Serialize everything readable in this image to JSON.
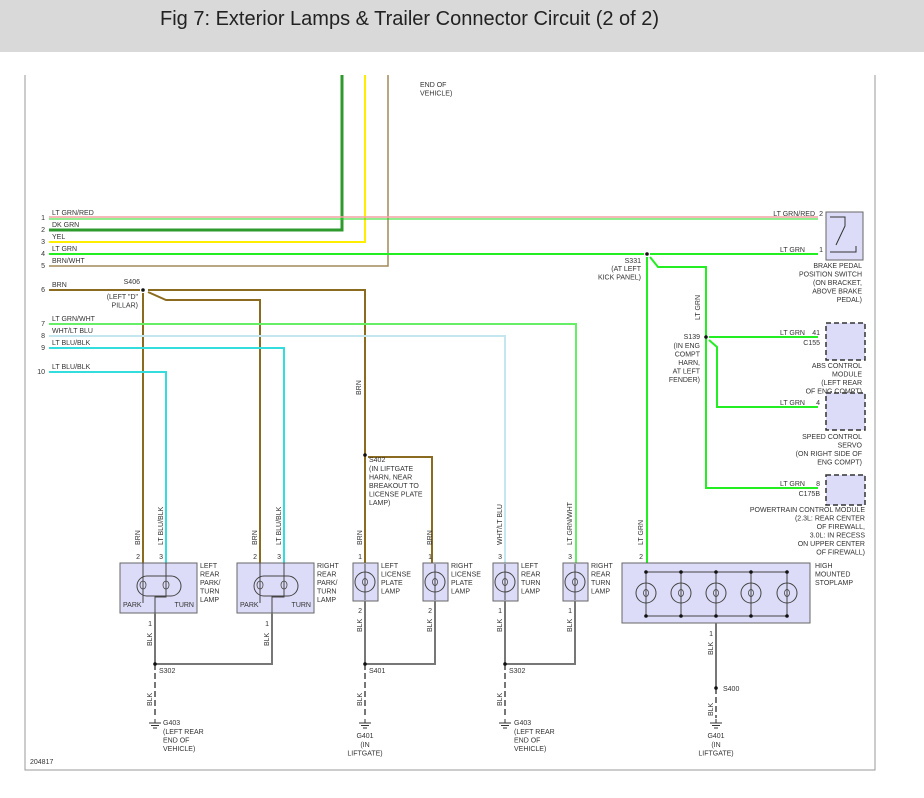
{
  "title": "Fig 7: Exterior Lamps & Trailer Connector Circuit (2 of 2)",
  "diagram_id": "204817",
  "top_note": [
    "END OF",
    "VEHICLE)"
  ],
  "harness": [
    {
      "pin": "1",
      "label": "LT GRN/RED",
      "color": "#f4a0a0",
      "stripe": "#22dd22"
    },
    {
      "pin": "2",
      "label": "DK GRN",
      "color": "#2e9a2e"
    },
    {
      "pin": "3",
      "label": "YEL",
      "color": "#ffee00"
    },
    {
      "pin": "4",
      "label": "LT GRN",
      "color": "#22ee22"
    },
    {
      "pin": "5",
      "label": "BRN/WHT",
      "color": "#a08a58"
    },
    {
      "pin": "6",
      "label": "BRN",
      "color": "#8b6b1f"
    },
    {
      "pin": "7",
      "label": "LT GRN/WHT",
      "color": "#66ee66"
    },
    {
      "pin": "8",
      "label": "WHT/LT BLU",
      "color": "#c4e6ee"
    },
    {
      "pin": "9",
      "label": "LT BLU/BLK",
      "color": "#33dddd"
    },
    {
      "pin": "10",
      "label": "LT BLU/BLK",
      "color": "#33dddd"
    }
  ],
  "colors": {
    "blk": "#777777",
    "lt_grn": "#22ee22",
    "brn": "#8b6b1f",
    "component_fill": "#dcdcf8"
  },
  "splices": {
    "s406": {
      "id": "S406",
      "location": [
        "(LEFT \"D\"",
        "PILLAR)"
      ]
    },
    "s331": {
      "id": "S331",
      "location": [
        "(AT LEFT",
        "KICK PANEL)"
      ]
    },
    "s139": {
      "id": "S139",
      "location": [
        "(IN ENG",
        "COMPT",
        "HARN,",
        "AT LEFT",
        "FENDER)"
      ]
    },
    "s402": {
      "id": "S402",
      "location": [
        "(IN LIFTGATE",
        "HARN, NEAR",
        "BREAKOUT TO",
        "LICENSE PLATE",
        "LAMP)"
      ]
    },
    "s302a": {
      "id": "S302"
    },
    "s401": {
      "id": "S401"
    },
    "s302b": {
      "id": "S302"
    },
    "s400": {
      "id": "S400"
    }
  },
  "grounds": {
    "g403a": {
      "id": "G403",
      "location": [
        "(LEFT REAR",
        "END OF",
        "VEHICLE)"
      ]
    },
    "g401a": {
      "id": "G401",
      "location": [
        "(IN",
        "LIFTGATE)"
      ]
    },
    "g403b": {
      "id": "G403",
      "location": [
        "(LEFT REAR",
        "END OF",
        "VEHICLE)"
      ]
    },
    "g401b": {
      "id": "G401",
      "location": [
        "(IN",
        "LIFTGATE)"
      ]
    }
  },
  "modules": {
    "brake_switch": {
      "name": [
        "BRAKE PEDAL",
        "POSITION SWITCH",
        "(ON BRACKET,",
        "ABOVE BRAKE",
        "PEDAL)"
      ],
      "pins": [
        "2",
        "1"
      ],
      "wires": [
        "LT GRN/RED",
        "LT GRN"
      ]
    },
    "abs": {
      "name": [
        "ABS CONTROL",
        "MODULE",
        "(LEFT REAR",
        "OF ENG COMPT)"
      ],
      "pin": "41",
      "connector": "C155",
      "wire": "LT GRN"
    },
    "speed_servo": {
      "name": [
        "SPEED CONTROL",
        "SERVO",
        "(ON RIGHT SIDE OF",
        "ENG COMPT)"
      ],
      "pin": "4",
      "wire": "LT GRN"
    },
    "pcm": {
      "name": [
        "POWERTRAIN CONTROL MODULE",
        "(2.3L: REAR CENTER",
        "OF FIREWALL,",
        "3.0L: IN RECESS",
        "ON UPPER CENTER",
        "OF FIREWALL)"
      ],
      "pin": "8",
      "connector": "C175B",
      "wire": "LT GRN"
    }
  },
  "vertical_labels": {
    "brn_s402": "BRN",
    "ltgrn_s139": "LT GRN",
    "ltgrn_hmsl": "LT GRN",
    "blk": "BLK"
  },
  "lamps": {
    "left_park": {
      "name": [
        "LEFT",
        "REAR",
        "PARK/",
        "TURN",
        "LAMP"
      ],
      "park": "PARK",
      "turn": "TURN",
      "pins": [
        "2",
        "3",
        "1"
      ],
      "wires": [
        "BRN",
        "LT BLU/BLK",
        "BLK"
      ]
    },
    "right_park": {
      "name": [
        "RIGHT",
        "REAR",
        "PARK/",
        "TURN",
        "LAMP"
      ],
      "park": "PARK",
      "turn": "TURN",
      "pins": [
        "2",
        "3",
        "1"
      ],
      "wires": [
        "BRN",
        "LT BLU/BLK",
        "BLK"
      ]
    },
    "left_license": {
      "name": [
        "LEFT",
        "LICENSE",
        "PLATE",
        "LAMP"
      ],
      "pins": [
        "1",
        "2"
      ],
      "wires": [
        "BRN",
        "BLK"
      ]
    },
    "right_license": {
      "name": [
        "RIGHT",
        "LICENSE",
        "PLATE",
        "LAMP"
      ],
      "pins": [
        "1",
        "2"
      ],
      "wires": [
        "BRN",
        "BLK"
      ]
    },
    "left_turn": {
      "name": [
        "LEFT",
        "REAR",
        "TURN",
        "LAMP"
      ],
      "pins": [
        "3",
        "1"
      ],
      "wires": [
        "WHT/LT BLU",
        "BLK"
      ]
    },
    "right_turn": {
      "name": [
        "RIGHT",
        "REAR",
        "TURN",
        "LAMP"
      ],
      "pins": [
        "3",
        "1"
      ],
      "wires": [
        "LT GRN/WHT",
        "BLK"
      ]
    },
    "hmsl": {
      "name": [
        "HIGH",
        "MOUNTED",
        "STOPLAMP"
      ],
      "pins": [
        "2",
        "1"
      ],
      "wires": [
        "LT GRN",
        "BLK"
      ]
    }
  }
}
